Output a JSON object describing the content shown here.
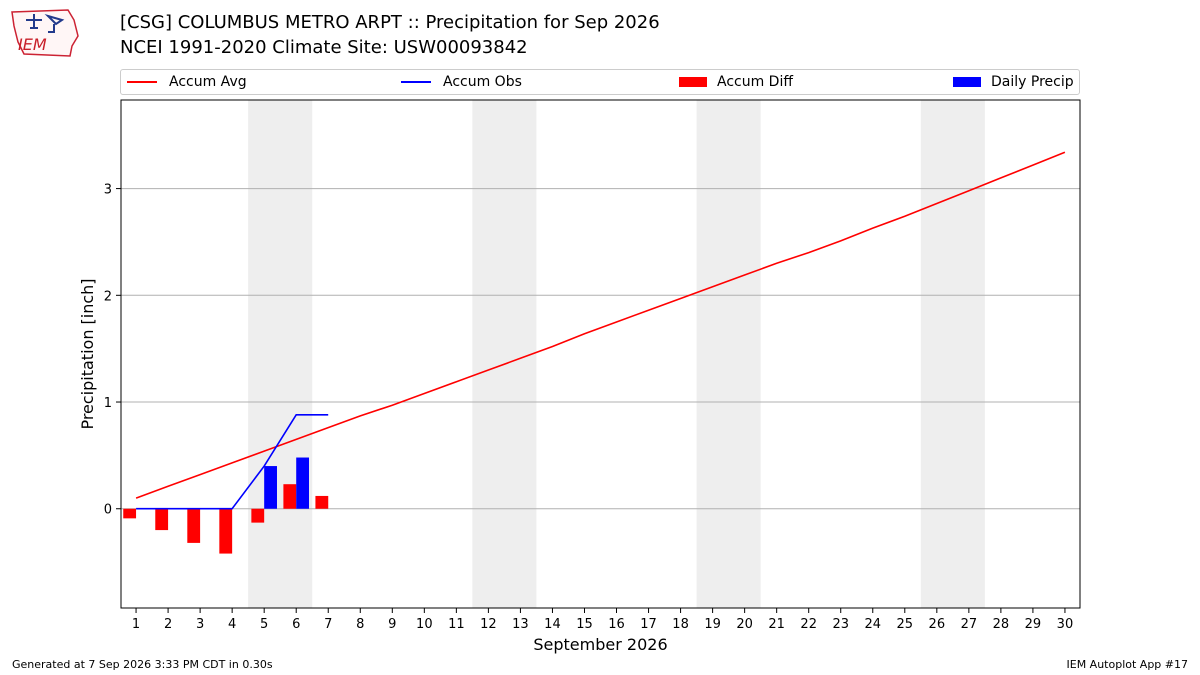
{
  "header": {
    "title_line1": "[CSG] COLUMBUS METRO ARPT :: Precipitation for Sep 2026",
    "title_line2": "NCEI 1991-2020 Climate Site: USW00093842",
    "logo_text": "IEM"
  },
  "footer": {
    "left": "Generated at 7 Sep 2026 3:33 PM CDT in 0.30s",
    "right": "IEM Autoplot App #17"
  },
  "chart_data": {
    "type": "bar",
    "xlabel": "September 2026",
    "ylabel": "Precipitation [inch]",
    "x": [
      1,
      2,
      3,
      4,
      5,
      6,
      7,
      8,
      9,
      10,
      11,
      12,
      13,
      14,
      15,
      16,
      17,
      18,
      19,
      20,
      21,
      22,
      23,
      24,
      25,
      26,
      27,
      28,
      29,
      30
    ],
    "ylim": [
      -0.93,
      3.83
    ],
    "yticks": [
      0,
      1,
      2,
      3
    ],
    "grid": "horizontal",
    "legend_position": "top",
    "weekend_shading": [
      [
        5,
        6
      ],
      [
        12,
        13
      ],
      [
        19,
        20
      ],
      [
        26,
        27
      ]
    ],
    "series": [
      {
        "name": "Accum Avg",
        "kind": "line",
        "color": "#ff0000",
        "x": [
          1,
          2,
          3,
          4,
          5,
          6,
          7,
          8,
          9,
          10,
          11,
          12,
          13,
          14,
          15,
          16,
          17,
          18,
          19,
          20,
          21,
          22,
          23,
          24,
          25,
          26,
          27,
          28,
          29,
          30
        ],
        "values": [
          0.1,
          0.21,
          0.32,
          0.43,
          0.54,
          0.65,
          0.76,
          0.87,
          0.97,
          1.08,
          1.19,
          1.3,
          1.41,
          1.52,
          1.64,
          1.75,
          1.86,
          1.97,
          2.08,
          2.19,
          2.3,
          2.4,
          2.51,
          2.63,
          2.74,
          2.86,
          2.98,
          3.1,
          3.22,
          3.34
        ]
      },
      {
        "name": "Accum Obs",
        "kind": "line",
        "color": "#0000ff",
        "x": [
          1,
          2,
          3,
          4,
          5,
          6,
          7
        ],
        "values": [
          0,
          0,
          0,
          0,
          0.4,
          0.88,
          0.88
        ]
      },
      {
        "name": "Accum Diff",
        "kind": "bar",
        "color": "#ff0000",
        "x": [
          1,
          2,
          3,
          4,
          5,
          6,
          7
        ],
        "values": [
          -0.09,
          -0.2,
          -0.32,
          -0.42,
          -0.13,
          0.23,
          0.12
        ]
      },
      {
        "name": "Daily Precip",
        "kind": "bar",
        "color": "#0000ff",
        "x": [
          1,
          2,
          3,
          4,
          5,
          6,
          7
        ],
        "values": [
          0,
          0,
          0,
          0,
          0.4,
          0.48,
          0
        ]
      }
    ]
  }
}
